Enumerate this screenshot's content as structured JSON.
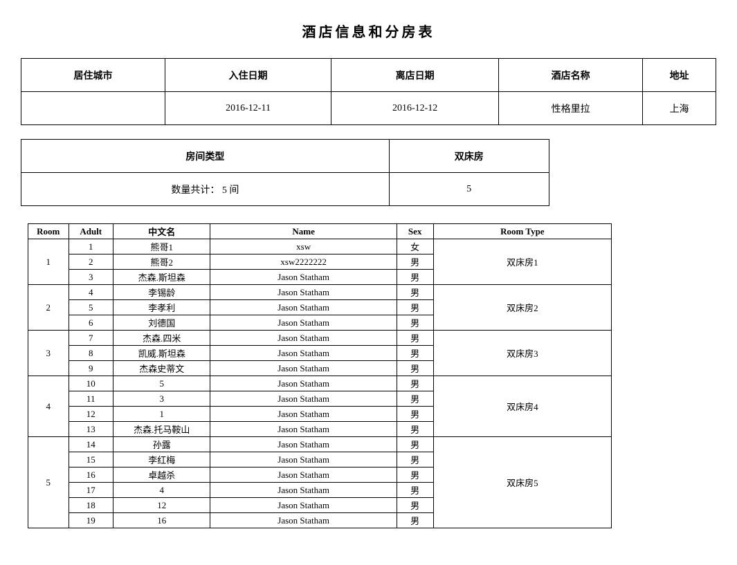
{
  "title": "酒店信息和分房表",
  "infoTable": {
    "headers": [
      "居住城市",
      "入住日期",
      "离店日期",
      "酒店名称",
      "地址"
    ],
    "row": [
      "",
      "2016-12-11",
      "2016-12-12",
      "性格里拉",
      "上海"
    ]
  },
  "roomTypeTable": {
    "headers": [
      "房间类型",
      "双床房"
    ],
    "row": [
      "数量共计： 5 间",
      "5"
    ]
  },
  "detailTable": {
    "headers": [
      "Room",
      "Adult",
      "中文名",
      "Name",
      "Sex",
      "Room Type"
    ],
    "rooms": [
      {
        "room": "1",
        "roomType": "双床房1",
        "guests": [
          {
            "adult": "1",
            "cnName": "熊哥1",
            "name": "xsw",
            "sex": "女"
          },
          {
            "adult": "2",
            "cnName": "熊哥2",
            "name": "xsw2222222",
            "sex": "男"
          },
          {
            "adult": "3",
            "cnName": "杰森.斯坦森",
            "name": "Jason Statham",
            "sex": "男"
          }
        ]
      },
      {
        "room": "2",
        "roomType": "双床房2",
        "guests": [
          {
            "adult": "4",
            "cnName": "李锡龄",
            "name": "Jason Statham",
            "sex": "男"
          },
          {
            "adult": "5",
            "cnName": "李孝利",
            "name": "Jason Statham",
            "sex": "男"
          },
          {
            "adult": "6",
            "cnName": "刘德国",
            "name": "Jason Statham",
            "sex": "男"
          }
        ]
      },
      {
        "room": "3",
        "roomType": "双床房3",
        "guests": [
          {
            "adult": "7",
            "cnName": "杰森.四米",
            "name": "Jason Statham",
            "sex": "男"
          },
          {
            "adult": "8",
            "cnName": "凯威.斯坦森",
            "name": "Jason Statham",
            "sex": "男"
          },
          {
            "adult": "9",
            "cnName": "杰森史蒂文",
            "name": "Jason Statham",
            "sex": "男"
          }
        ]
      },
      {
        "room": "4",
        "roomType": "双床房4",
        "guests": [
          {
            "adult": "10",
            "cnName": "5",
            "name": "Jason Statham",
            "sex": "男"
          },
          {
            "adult": "11",
            "cnName": "3",
            "name": "Jason Statham",
            "sex": "男"
          },
          {
            "adult": "12",
            "cnName": "1",
            "name": "Jason Statham",
            "sex": "男"
          },
          {
            "adult": "13",
            "cnName": "杰森.托马鞍山",
            "name": "Jason Statham",
            "sex": "男"
          }
        ]
      },
      {
        "room": "5",
        "roomType": "双床房5",
        "guests": [
          {
            "adult": "14",
            "cnName": "孙露",
            "name": "Jason Statham",
            "sex": "男"
          },
          {
            "adult": "15",
            "cnName": "李红梅",
            "name": "Jason Statham",
            "sex": "男"
          },
          {
            "adult": "16",
            "cnName": "卓越杀",
            "name": "Jason Statham",
            "sex": "男"
          },
          {
            "adult": "17",
            "cnName": "4",
            "name": "Jason Statham",
            "sex": "男"
          },
          {
            "adult": "18",
            "cnName": "12",
            "name": "Jason Statham",
            "sex": "男"
          },
          {
            "adult": "19",
            "cnName": "16",
            "name": "Jason Statham",
            "sex": "男"
          }
        ]
      }
    ]
  }
}
